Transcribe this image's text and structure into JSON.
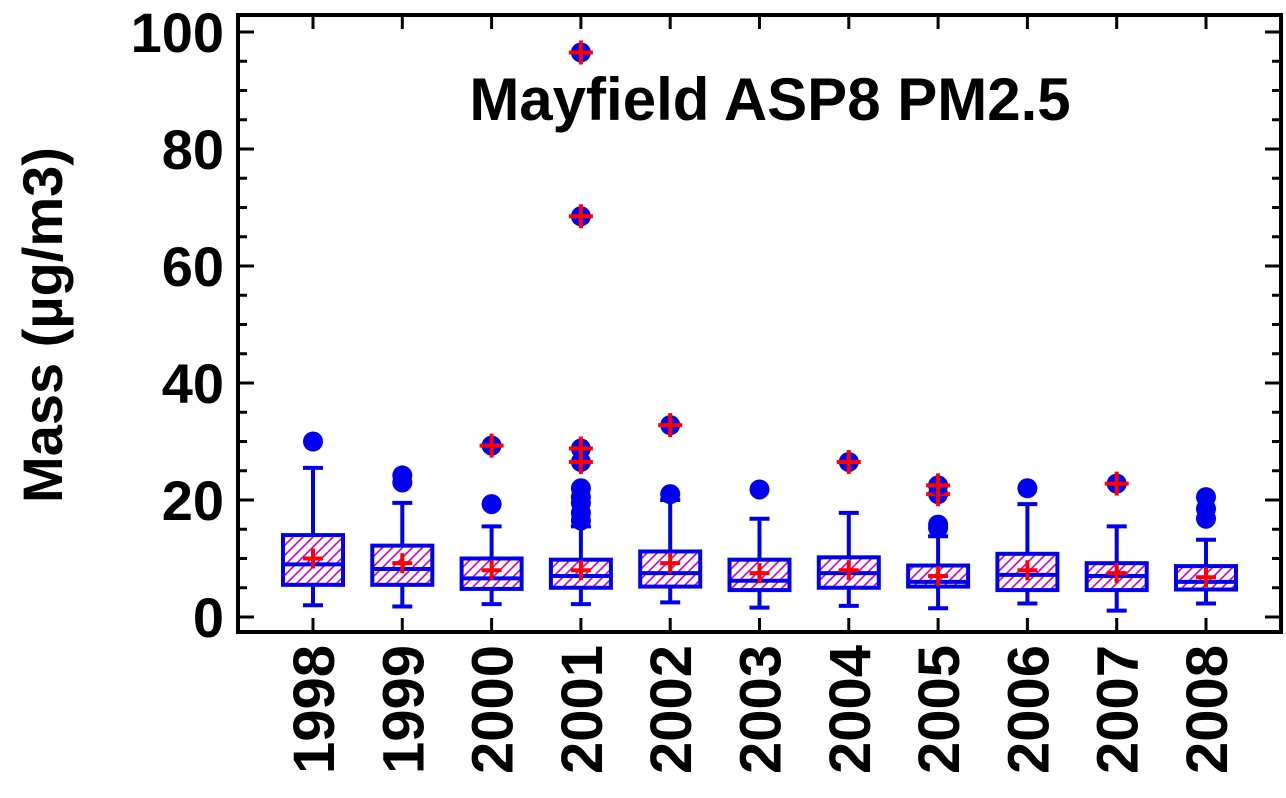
{
  "chart_data": {
    "type": "box",
    "title": "Mayfield ASP8 PM2.5",
    "xlabel": "",
    "ylabel": "Mass (µg/m3)",
    "ylim": [
      0,
      100
    ],
    "yticks": [
      "0",
      "20",
      "40",
      "60",
      "80",
      "100"
    ],
    "grid": false,
    "categories": [
      "1998",
      "1999",
      "2000",
      "2001",
      "2002",
      "2003",
      "2004",
      "2005",
      "2006",
      "2007",
      "2008"
    ],
    "boxes": [
      {
        "min": 2.0,
        "q1": 5.5,
        "median": 9.0,
        "q3": 14.0,
        "max": 25.5,
        "mean": 10.0,
        "outliers": [
          30.0
        ],
        "mean_marked_outliers": []
      },
      {
        "min": 1.8,
        "q1": 5.5,
        "median": 8.2,
        "q3": 12.2,
        "max": 19.5,
        "mean": 9.2,
        "outliers": [
          23.0,
          24.2
        ],
        "mean_marked_outliers": []
      },
      {
        "min": 2.2,
        "q1": 4.8,
        "median": 6.6,
        "q3": 10.0,
        "max": 15.5,
        "mean": 8.0,
        "outliers": [
          19.3,
          29.3
        ],
        "mean_marked_outliers": [
          29.3
        ]
      },
      {
        "min": 2.2,
        "q1": 5.0,
        "median": 7.0,
        "q3": 9.8,
        "max": 15.5,
        "mean": 8.0,
        "outliers": [
          16.5,
          17.8,
          19.5,
          20.5,
          22.0,
          26.5,
          28.8,
          68.5,
          96.5
        ],
        "mean_marked_outliers": [
          26.5,
          28.8,
          68.5,
          96.5
        ]
      },
      {
        "min": 2.5,
        "q1": 5.2,
        "median": 7.5,
        "q3": 11.2,
        "max": 20.0,
        "mean": 9.2,
        "outliers": [
          21.0,
          32.8
        ],
        "mean_marked_outliers": [
          32.8
        ]
      },
      {
        "min": 1.6,
        "q1": 4.6,
        "median": 6.2,
        "q3": 9.8,
        "max": 16.8,
        "mean": 7.5,
        "outliers": [
          21.8
        ],
        "mean_marked_outliers": []
      },
      {
        "min": 1.9,
        "q1": 5.0,
        "median": 7.5,
        "q3": 10.2,
        "max": 17.8,
        "mean": 8.0,
        "outliers": [
          26.5
        ],
        "mean_marked_outliers": [
          26.5
        ]
      },
      {
        "min": 1.5,
        "q1": 5.2,
        "median": 6.0,
        "q3": 8.8,
        "max": 13.8,
        "mean": 7.0,
        "outliers": [
          15.2,
          15.8,
          21.0,
          22.5
        ],
        "mean_marked_outliers": [
          21.0,
          22.5
        ]
      },
      {
        "min": 2.3,
        "q1": 4.6,
        "median": 7.2,
        "q3": 10.8,
        "max": 19.3,
        "mean": 8.0,
        "outliers": [
          22.0
        ],
        "mean_marked_outliers": []
      },
      {
        "min": 1.1,
        "q1": 4.6,
        "median": 7.0,
        "q3": 9.2,
        "max": 15.5,
        "mean": 7.5,
        "outliers": [
          22.8
        ],
        "mean_marked_outliers": [
          22.8
        ]
      },
      {
        "min": 2.3,
        "q1": 4.7,
        "median": 6.0,
        "q3": 8.7,
        "max": 13.2,
        "mean": 6.8,
        "outliers": [
          16.8,
          18.5,
          20.5
        ],
        "mean_marked_outliers": []
      }
    ],
    "colors": {
      "box": "#0000ee",
      "hatch": "#cc00cc",
      "mean": "#ff0000",
      "outlier": "#0000ee",
      "axis": "#000000"
    }
  }
}
